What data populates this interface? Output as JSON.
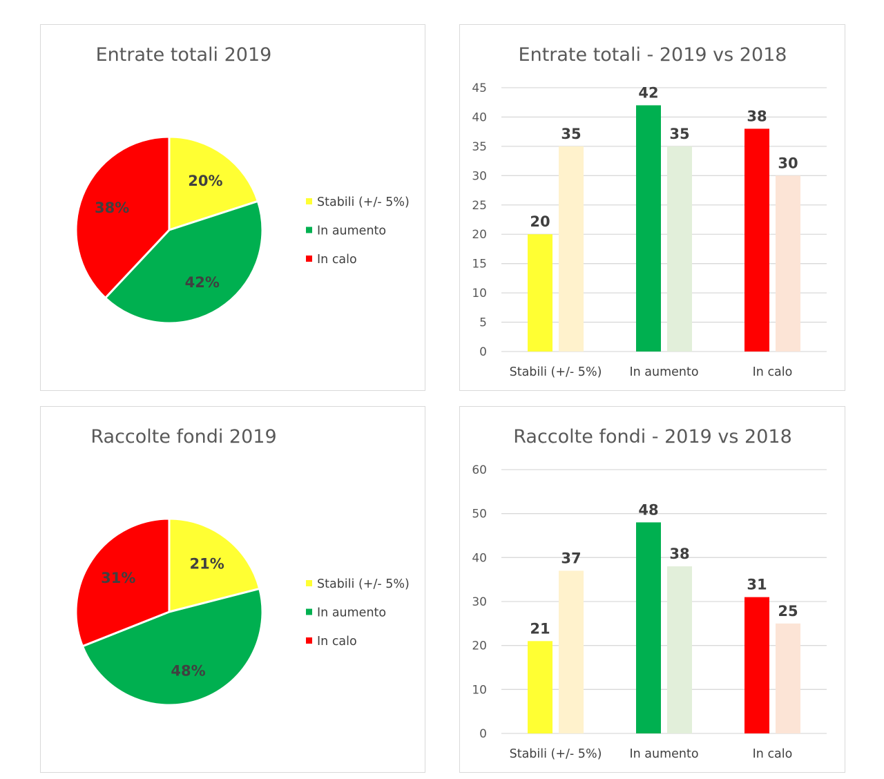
{
  "colors": {
    "stabili": "#ffff33",
    "aumento": "#00b050",
    "calo": "#ff0000",
    "stabili_2018": "#fff2cc",
    "aumento_2018": "#e2efda",
    "calo_2018": "#fce4d6",
    "gridline": "#d9d9d9",
    "pie_border": "#ffffff"
  },
  "chart_data": [
    {
      "type": "pie",
      "title": "Entrate totali 2019",
      "categories": [
        "Stabili (+/- 5%)",
        "In aumento",
        "In calo"
      ],
      "values": [
        20,
        42,
        38
      ],
      "labels": [
        "20%",
        "42%",
        "38%"
      ],
      "legend_position": "right"
    },
    {
      "type": "bar",
      "title": "Entrate totali - 2019 vs 2018",
      "categories": [
        "Stabili (+/- 5%)",
        "In aumento",
        "In calo"
      ],
      "series": [
        {
          "values": [
            20,
            42,
            38
          ]
        },
        {
          "values": [
            35,
            35,
            30
          ]
        }
      ],
      "ylim": [
        0,
        45
      ],
      "yticks": [
        0,
        5,
        10,
        15,
        20,
        25,
        30,
        35,
        40,
        45
      ],
      "grid": true
    },
    {
      "type": "pie",
      "title": "Raccolte fondi 2019",
      "categories": [
        "Stabili (+/- 5%)",
        "In aumento",
        "In calo"
      ],
      "values": [
        21,
        48,
        31
      ],
      "labels": [
        "21%",
        "48%",
        "31%"
      ],
      "legend_position": "right"
    },
    {
      "type": "bar",
      "title": "Raccolte fondi - 2019 vs 2018",
      "categories": [
        "Stabili (+/- 5%)",
        "In aumento",
        "In calo"
      ],
      "series": [
        {
          "values": [
            21,
            48,
            31
          ]
        },
        {
          "values": [
            37,
            38,
            25
          ]
        }
      ],
      "ylim": [
        0,
        60
      ],
      "yticks": [
        0,
        10,
        20,
        30,
        40,
        50,
        60
      ],
      "grid": true
    }
  ]
}
